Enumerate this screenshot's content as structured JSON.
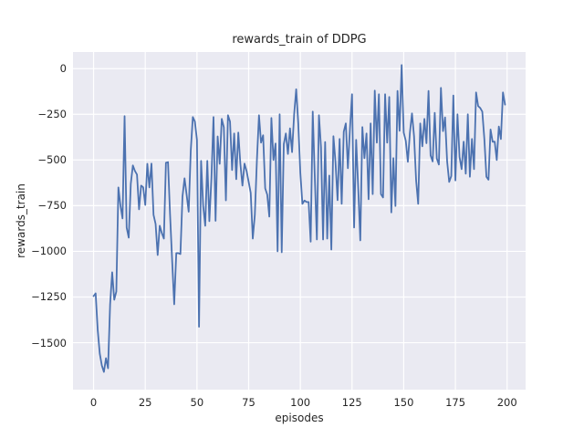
{
  "chart_data": {
    "type": "line",
    "title": "rewards_train of DDPG",
    "xlabel": "episodes",
    "ylabel": "rewards_train",
    "x_is_index": true,
    "x_ticks": [
      0,
      25,
      50,
      75,
      100,
      125,
      150,
      175,
      200
    ],
    "x_tick_labels": [
      "0",
      "25",
      "50",
      "75",
      "100",
      "125",
      "150",
      "175",
      "200"
    ],
    "y_ticks": [
      0,
      -250,
      -500,
      -750,
      -1000,
      -1250,
      -1500
    ],
    "y_tick_labels": [
      "0",
      "−250",
      "−500",
      "−750",
      "−1000",
      "−1250",
      "−1500"
    ],
    "xlim": [
      -9.95,
      208.95
    ],
    "ylim": [
      -1757,
      91
    ],
    "grid": true,
    "legend_position": "none",
    "style": {
      "line_color": "#4c72b0",
      "line_width": 1.8,
      "plot_background": "#eaeaf2",
      "grid_color": "#ffffff",
      "figure_background": "#ffffff",
      "text_color": "#262626"
    },
    "values": [
      -1245,
      -1230,
      -1430,
      -1560,
      -1625,
      -1660,
      -1585,
      -1640,
      -1290,
      -1115,
      -1265,
      -1220,
      -650,
      -750,
      -820,
      -260,
      -870,
      -925,
      -630,
      -530,
      -560,
      -580,
      -770,
      -640,
      -650,
      -746,
      -521,
      -650,
      -520,
      -800,
      -850,
      -1020,
      -860,
      -900,
      -930,
      -515,
      -512,
      -800,
      -1050,
      -1290,
      -1010,
      -1010,
      -1015,
      -700,
      -600,
      -690,
      -783,
      -450,
      -265,
      -290,
      -390,
      -1413,
      -505,
      -750,
      -860,
      -505,
      -835,
      -600,
      -265,
      -833,
      -371,
      -521,
      -275,
      -321,
      -721,
      -255,
      -290,
      -555,
      -355,
      -605,
      -350,
      -521,
      -640,
      -520,
      -560,
      -620,
      -680,
      -930,
      -800,
      -500,
      -255,
      -405,
      -365,
      -655,
      -690,
      -810,
      -270,
      -500,
      -410,
      -1000,
      -250,
      -1005,
      -413,
      -355,
      -467,
      -327,
      -457,
      -250,
      -113,
      -300,
      -570,
      -740,
      -722,
      -730,
      -730,
      -947,
      -235,
      -595,
      -935,
      -255,
      -430,
      -935,
      -402,
      -930,
      -585,
      -990,
      -370,
      -510,
      -720,
      -385,
      -740,
      -345,
      -300,
      -545,
      -330,
      -140,
      -870,
      -390,
      -655,
      -940,
      -320,
      -490,
      -355,
      -715,
      -300,
      -687,
      -120,
      -405,
      -140,
      -687,
      -705,
      -140,
      -405,
      -155,
      -787,
      -490,
      -752,
      -122,
      -340,
      20,
      -350,
      -395,
      -510,
      -350,
      -245,
      -370,
      -612,
      -740,
      -300,
      -425,
      -275,
      -408,
      -122,
      -475,
      -508,
      -242,
      -492,
      -525,
      -105,
      -342,
      -267,
      -508,
      -620,
      -588,
      -147,
      -612,
      -250,
      -483,
      -550,
      -400,
      -575,
      -250,
      -592,
      -385,
      -550,
      -130,
      -205,
      -215,
      -235,
      -385,
      -592,
      -608,
      -333,
      -400,
      -400,
      -500,
      -317,
      -385,
      -130,
      -197
    ]
  }
}
